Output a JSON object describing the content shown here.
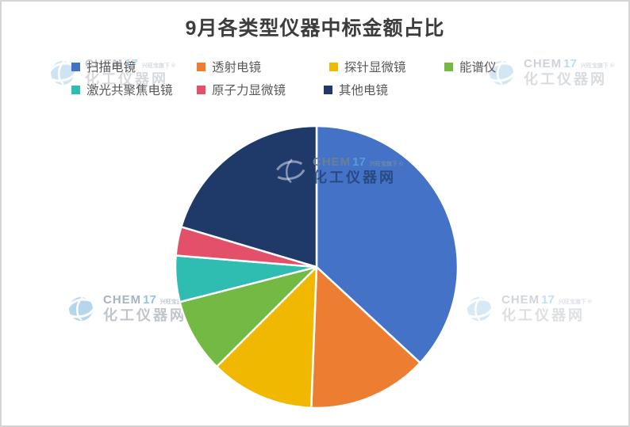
{
  "title": "9月各类型仪器中标金额占比",
  "chart_data": {
    "type": "pie",
    "title": "9月各类型仪器中标金额占比",
    "units": "percent",
    "start_angle_deg": 0,
    "direction": "clockwise",
    "legend_position": "top",
    "series": [
      {
        "name": "扫描电镜",
        "value": 36.9,
        "color": "#4472c7"
      },
      {
        "name": "透射电镜",
        "value": 13.7,
        "color": "#ed7d31"
      },
      {
        "name": "探针显微镜",
        "value": 11.9,
        "color": "#f0b800"
      },
      {
        "name": "能谱仪",
        "value": 8.5,
        "color": "#74b944"
      },
      {
        "name": "激光共聚焦电镜",
        "value": 5.3,
        "color": "#2fbdb2"
      },
      {
        "name": "原子力显微镜",
        "value": 3.3,
        "color": "#e4506a"
      },
      {
        "name": "其他电镜",
        "value": 20.4,
        "color": "#1f3968"
      }
    ]
  },
  "watermark": {
    "brand_chem": "CHEM",
    "brand_17": "17",
    "tagline": "兴旺宝旗下",
    "site_name": "化工仪器网",
    "registered_mark": "®"
  }
}
